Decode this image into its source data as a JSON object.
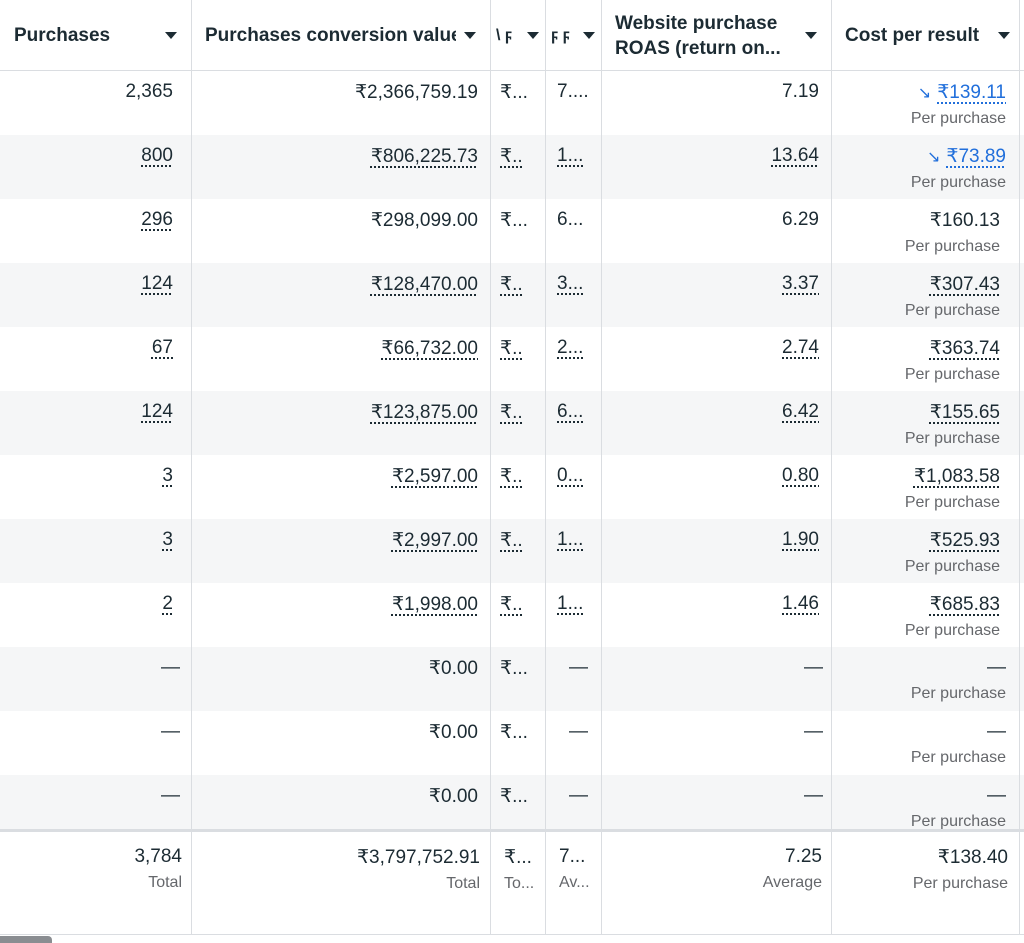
{
  "headers": {
    "purchases": "Purchases",
    "conversion_value": "Purchases conversion value",
    "narrow1": "\\ ϝ",
    "narrow2": "ϝ ϝ",
    "roas": "Website purchase ROAS (return on...",
    "cost": "Cost per result"
  },
  "rows": [
    {
      "purchases": "2,365",
      "value": "₹2,366,759.19",
      "c3": "₹...",
      "c4": "7....",
      "roas": "7.19",
      "cost": "₹139.11",
      "sub": "Per purchase"
    },
    {
      "purchases": "800",
      "value": "₹806,225.73",
      "c3": "₹..",
      "c4": "1...",
      "roas": "13.64",
      "cost": "₹73.89",
      "sub": "Per purchase"
    },
    {
      "purchases": "296",
      "value": "₹298,099.00",
      "c3": "₹...",
      "c4": "6...",
      "roas": "6.29",
      "cost": "₹160.13",
      "sub": "Per purchase"
    },
    {
      "purchases": "124",
      "value": "₹128,470.00",
      "c3": "₹..",
      "c4": "3...",
      "roas": "3.37",
      "cost": "₹307.43",
      "sub": "Per purchase"
    },
    {
      "purchases": "67",
      "value": "₹66,732.00",
      "c3": "₹..",
      "c4": "2...",
      "roas": "2.74",
      "cost": "₹363.74",
      "sub": "Per purchase"
    },
    {
      "purchases": "124",
      "value": "₹123,875.00",
      "c3": "₹..",
      "c4": "6...",
      "roas": "6.42",
      "cost": "₹155.65",
      "sub": "Per purchase"
    },
    {
      "purchases": "3",
      "value": "₹2,597.00",
      "c3": "₹..",
      "c4": "0...",
      "roas": "0.80",
      "cost": "₹1,083.58",
      "sub": "Per purchase"
    },
    {
      "purchases": "3",
      "value": "₹2,997.00",
      "c3": "₹..",
      "c4": "1...",
      "roas": "1.90",
      "cost": "₹525.93",
      "sub": "Per purchase"
    },
    {
      "purchases": "2",
      "value": "₹1,998.00",
      "c3": "₹..",
      "c4": "1...",
      "roas": "1.46",
      "cost": "₹685.83",
      "sub": "Per purchase"
    },
    {
      "purchases": "—",
      "value": "₹0.00",
      "c3": "₹...",
      "c4": "—",
      "roas": "—",
      "cost": "—",
      "sub": "Per purchase"
    },
    {
      "purchases": "—",
      "value": "₹0.00",
      "c3": "₹...",
      "c4": "—",
      "roas": "—",
      "cost": "—",
      "sub": "Per purchase"
    },
    {
      "purchases": "—",
      "value": "₹0.00",
      "c3": "₹...",
      "c4": "—",
      "roas": "—",
      "cost": "—",
      "sub": "Per purchase"
    }
  ],
  "totals": {
    "purchases": "3,784",
    "purchases_label": "Total",
    "value": "₹3,797,752.91",
    "value_label": "Total",
    "c3": "₹...",
    "c3_label": "To...",
    "c4": "7...",
    "c4_label": "Av...",
    "roas": "7.25",
    "roas_label": "Average",
    "cost": "₹138.40",
    "cost_label": "Per purchase"
  },
  "trend_icon": "trending-down-icon",
  "link_color": "#216fdb"
}
